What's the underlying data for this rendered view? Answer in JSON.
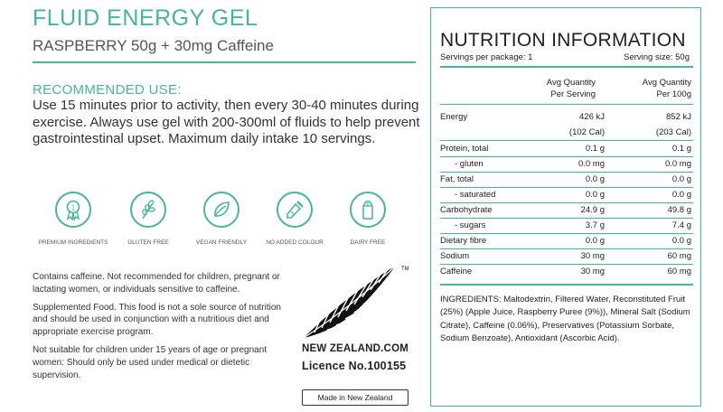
{
  "header": {
    "title": "FLUID ENERGY GEL",
    "subtitle": "RASPBERRY 50g + 30mg Caffeine"
  },
  "recommended": {
    "heading": "RECOMMENDED USE:",
    "body": "Use 15 minutes prior to activity, then every 30-40 minutes during exercise. Always use gel with 200-300ml of fluids to help prevent gastrointestinal upset. Maximum daily intake 10 servings."
  },
  "badges": [
    {
      "icon": "ribbon-medal-icon",
      "label": "PREMIUM INGREDIENTS"
    },
    {
      "icon": "wheat-icon",
      "label": "GLUTEN FREE"
    },
    {
      "icon": "leaf-icon",
      "label": "VEGAN FRIENDLY"
    },
    {
      "icon": "dropper-icon",
      "label": "NO ADDED COLOUR"
    },
    {
      "icon": "milk-carton-icon",
      "label": "DAIRY FREE"
    }
  ],
  "warnings": [
    "Contains caffeine. Not recommended for children, pregnant or lactating women, or individuals sensitive to caffeine.",
    "Supplemented Food. This food is not a sole source of nutrition and should be used in conjunction with a nutritious diet and appropriate exercise program.",
    "Not suitable for children under 15 years of age or pregnant women: Should only be used under medical or dietetic supervision."
  ],
  "nz": {
    "logo": "fern-icon",
    "tm": "TM",
    "name": "NEW ZEALAND.COM",
    "licence": "Licence No.100155",
    "made_in": "Made in New Zealand"
  },
  "nutrition": {
    "title": "NUTRITION INFORMATION",
    "servings_per_package": "Servings per package: 1",
    "serving_size": "Serving size: 50g",
    "col_per_serving": [
      "Avg Quantity",
      "Per Serving"
    ],
    "col_per_100g": [
      "Avg Quantity",
      "Per 100g"
    ],
    "rows": [
      {
        "name": "Energy",
        "per_serving": "426 kJ",
        "per_100g": "852 kJ",
        "sub": false
      },
      {
        "name": "",
        "per_serving": "(102 Cal)",
        "per_100g": "(203 Cal)",
        "sub": false
      },
      {
        "name": "Protein, total",
        "per_serving": "0.1 g",
        "per_100g": "0.1 g",
        "sub": false
      },
      {
        "name": "- gluten",
        "per_serving": "0.0 mg",
        "per_100g": "0.0 mg",
        "sub": true
      },
      {
        "name": "Fat, total",
        "per_serving": "0.0 g",
        "per_100g": "0.0 g",
        "sub": false
      },
      {
        "name": "- saturated",
        "per_serving": "0.0 g",
        "per_100g": "0.0 g",
        "sub": true
      },
      {
        "name": "Carbohydrate",
        "per_serving": "24.9 g",
        "per_100g": "49.8 g",
        "sub": false
      },
      {
        "name": "- sugars",
        "per_serving": "3.7 g",
        "per_100g": "7.4 g",
        "sub": true
      },
      {
        "name": "Dietary fibre",
        "per_serving": "0.0 g",
        "per_100g": "0.0 g",
        "sub": false
      },
      {
        "name": "Sodium",
        "per_serving": "30 mg",
        "per_100g": "60 mg",
        "sub": false
      },
      {
        "name": "Caffeine",
        "per_serving": "30 mg",
        "per_100g": "60 mg",
        "sub": false
      }
    ],
    "ingredients": "INGREDIENTS: Maltodextrin, Filtered Water, Reconstituted Fruit (25%) (Apple Juice, Raspberry Puree (9%)), Mineral Salt (Sodium Citrate), Caffeine (0.06%), Preservatives (Potassium Sorbate, Sodium Benzoate), Antioxidant (Ascorbic Acid)."
  },
  "colors": {
    "accent": "#47b59c",
    "text": "#222222"
  }
}
